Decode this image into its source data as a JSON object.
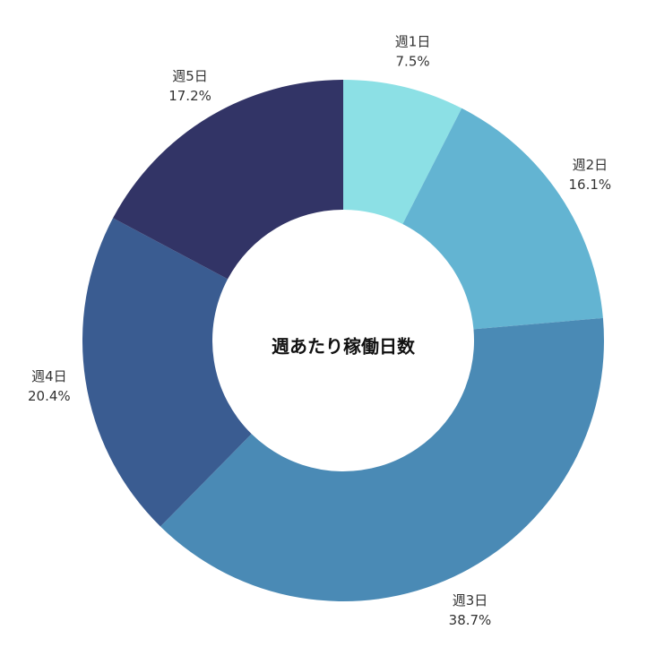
{
  "chart_data": {
    "type": "pie",
    "variant": "donut",
    "center_label": "週あたり稼働日数",
    "slices": [
      {
        "label": "週1日",
        "value": 7.5,
        "value_text": "7.5%",
        "color": "#8ce0e5"
      },
      {
        "label": "週2日",
        "value": 16.1,
        "value_text": "16.1%",
        "color": "#63b4d2"
      },
      {
        "label": "週3日",
        "value": 38.7,
        "value_text": "38.7%",
        "color": "#4a8ab5"
      },
      {
        "label": "週4日",
        "value": 20.4,
        "value_text": "20.4%",
        "color": "#3a5c91"
      },
      {
        "label": "週5日",
        "value": 17.2,
        "value_text": "17.2%",
        "color": "#323466"
      }
    ],
    "start_angle": "12 o'clock",
    "direction": "clockwise",
    "legend": "none (labels beside slices)"
  }
}
